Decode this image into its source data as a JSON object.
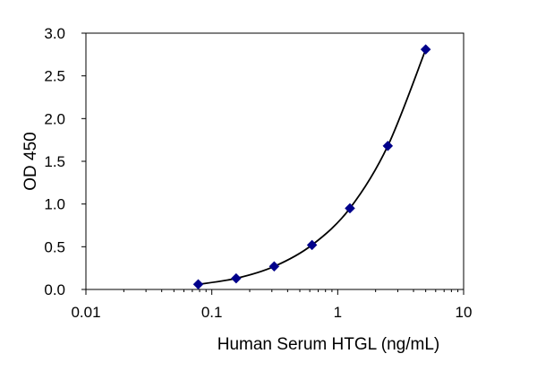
{
  "chart_data": {
    "type": "scatter",
    "title": "",
    "xlabel": "Human Serum HTGL (ng/mL)",
    "ylabel": "OD 450",
    "x_scale": "log",
    "xlim": [
      0.01,
      10
    ],
    "ylim": [
      0,
      3.0
    ],
    "x_ticks": [
      "0.01",
      "0.1",
      "1",
      "10"
    ],
    "y_ticks": [
      "0.0",
      "0.5",
      "1.0",
      "1.5",
      "2.0",
      "2.5",
      "3.0"
    ],
    "grid": false,
    "legend": "none",
    "fit_curve": true,
    "colors": {
      "marker": "#00008B",
      "curve": "#000000",
      "axis": "#000000"
    },
    "series": [
      {
        "x": [
          0.078,
          0.156,
          0.313,
          0.625,
          1.25,
          2.5,
          5
        ],
        "y": [
          0.06,
          0.13,
          0.27,
          0.52,
          0.95,
          1.68,
          2.81
        ]
      }
    ]
  }
}
